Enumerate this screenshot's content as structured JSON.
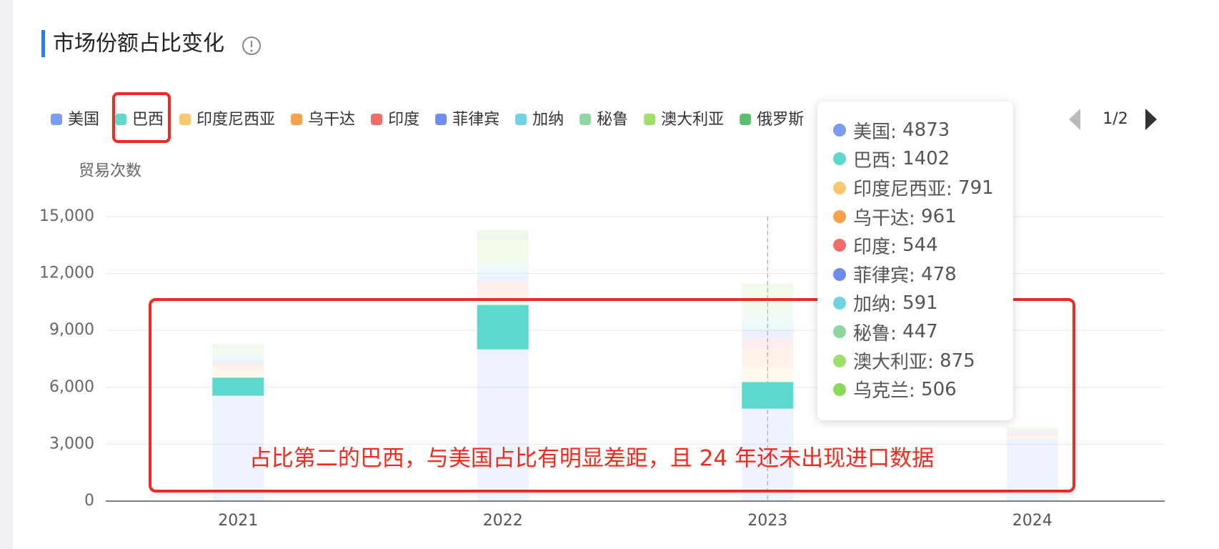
{
  "chart_data": {
    "type": "stacked_bar",
    "title": "市场份额占比变化",
    "y_label": "贸易次数",
    "annotation": "占比第二的巴西，与美国占比有明显差距，且 24 年还未出现进口数据",
    "legend_page": "1/2",
    "categories": [
      "2021",
      "2022",
      "2023",
      "2024"
    ],
    "ylim": [
      0,
      15000
    ],
    "yticks": [
      0,
      {
        "value": 3000,
        "label": "3,000"
      },
      {
        "value": 6000,
        "label": "6,000"
      },
      {
        "value": 9000,
        "label": "9,000"
      },
      {
        "value": 12000,
        "label": "12,000"
      },
      {
        "value": 15000,
        "label": "15,000"
      }
    ],
    "grid": true,
    "series": [
      {
        "name": "美国",
        "color": "#7b9cf0",
        "values": [
          5560,
          8000,
          4873,
          3300
        ]
      },
      {
        "name": "巴西",
        "color": "#5dd8cd",
        "values": [
          950,
          2340,
          1402,
          null
        ]
      },
      {
        "name": "印度尼西亚",
        "color": "#f9c86e",
        "values": [
          250,
          350,
          791,
          100
        ]
      },
      {
        "name": "乌干达",
        "color": "#f8a04a",
        "values": [
          300,
          400,
          961,
          100
        ]
      },
      {
        "name": "印度",
        "color": "#f26d6a",
        "values": [
          200,
          500,
          544,
          100
        ]
      },
      {
        "name": "菲律宾",
        "color": "#6f8cf0",
        "values": [
          180,
          300,
          478,
          80
        ]
      },
      {
        "name": "加纳",
        "color": "#6fd3e6",
        "values": [
          220,
          450,
          591,
          70
        ]
      },
      {
        "name": "秘鲁",
        "color": "#8fd6a0",
        "values": [
          150,
          350,
          447,
          50
        ]
      },
      {
        "name": "澳大利亚",
        "color": "#9ee06a",
        "values": [
          270,
          1100,
          875,
          100
        ]
      },
      {
        "name": "俄罗斯",
        "color": "#5cbf6f",
        "values": [
          100,
          300,
          null,
          null
        ]
      },
      {
        "name": "乌克兰",
        "color": "#8cd95c",
        "values": [
          100,
          210,
          506,
          null
        ]
      }
    ],
    "tooltip_category": 2
  }
}
